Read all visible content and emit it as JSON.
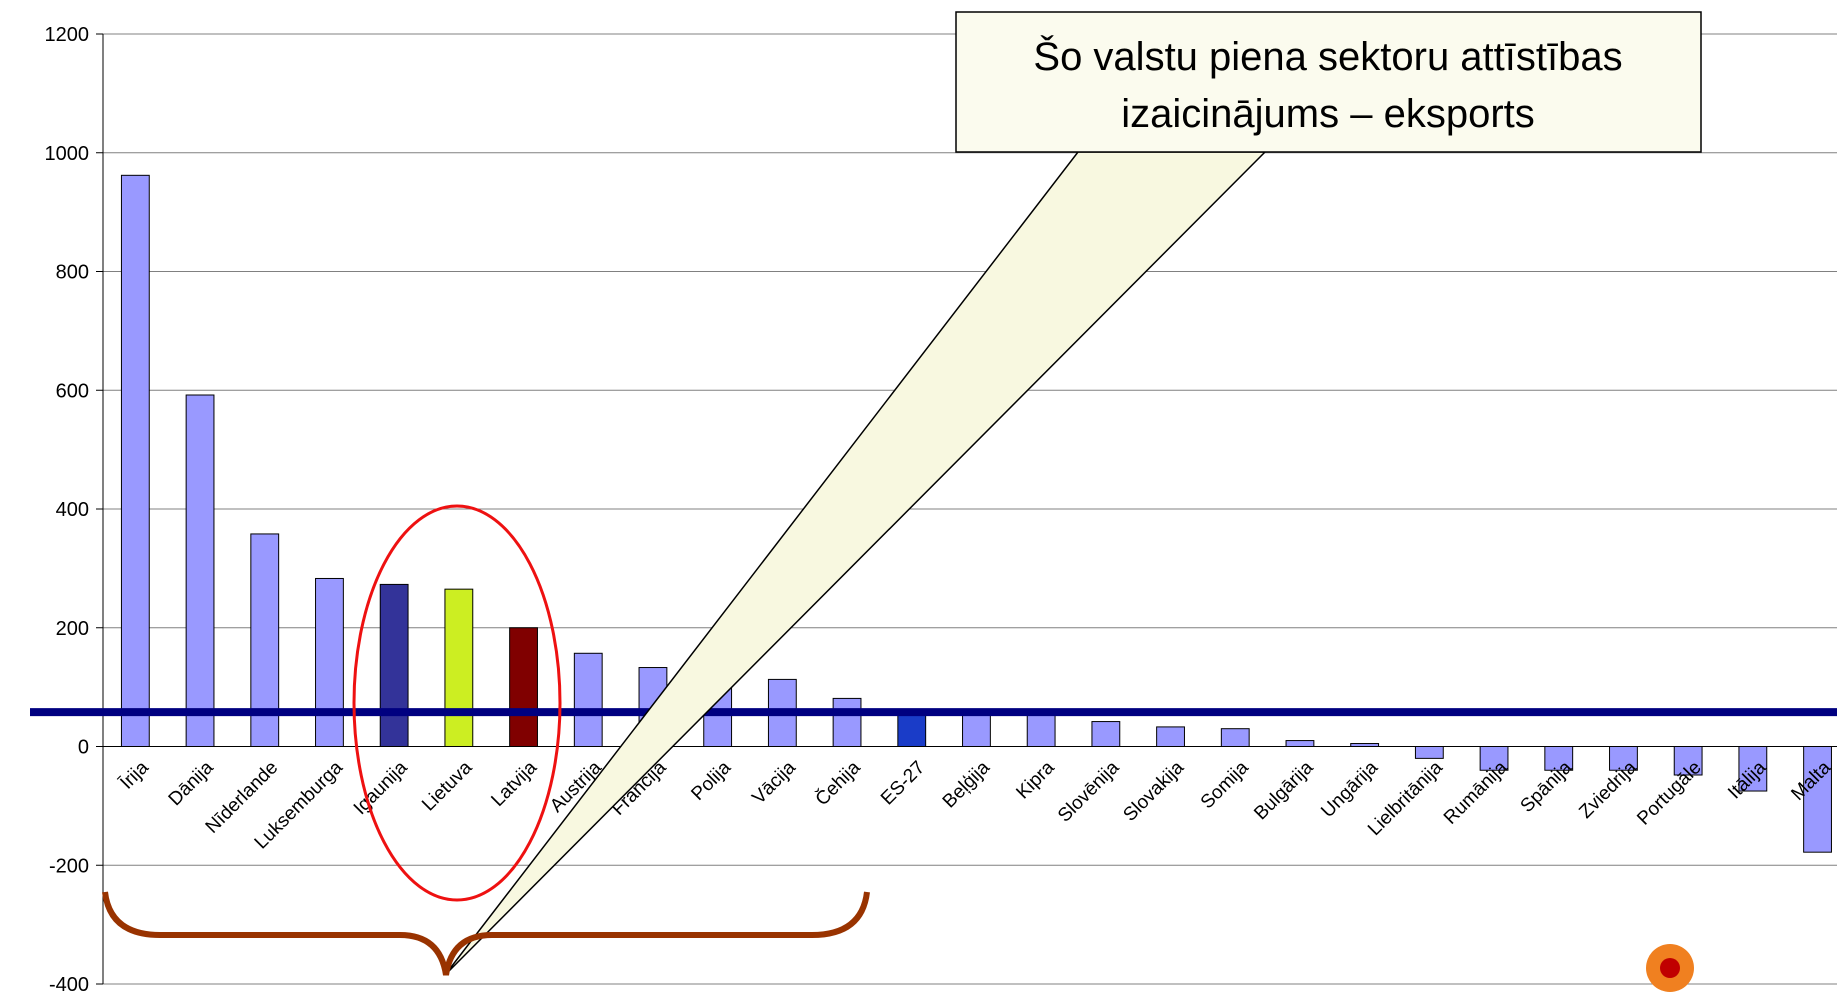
{
  "chart_data": {
    "type": "bar",
    "categories": [
      "Īrija",
      "Dānija",
      "Nīderlande",
      "Luksemburga",
      "Igaunija",
      "Lietuva",
      "Latvija",
      "Austrija",
      "Francija",
      "Polija",
      "Vācija",
      "Čehija",
      "ES-27",
      "Beļģija",
      "Kipra",
      "Slovēnija",
      "Slovakija",
      "Somija",
      "Bulgārija",
      "Ungārija",
      "Lielbritānija",
      "Rumānija",
      "Spānija",
      "Zviedrija",
      "Portugāle",
      "Itālija",
      "Malta"
    ],
    "values": [
      962,
      592,
      358,
      283,
      273,
      265,
      200,
      157,
      133,
      123,
      113,
      81,
      58,
      55,
      55,
      42,
      33,
      30,
      10,
      5,
      -20,
      -40,
      -40,
      -40,
      -48,
      -75,
      -178
    ],
    "colors": [
      "#9999ff",
      "#9999ff",
      "#9999ff",
      "#9999ff",
      "#333399",
      "#ccee22",
      "#800000",
      "#9999ff",
      "#9999ff",
      "#9999ff",
      "#9999ff",
      "#9999ff",
      "#1a3cc8",
      "#9999ff",
      "#9999ff",
      "#9999ff",
      "#9999ff",
      "#9999ff",
      "#9999ff",
      "#9999ff",
      "#9999ff",
      "#9999ff",
      "#9999ff",
      "#9999ff",
      "#9999ff",
      "#9999ff",
      "#9999ff"
    ],
    "ylim": [
      -400,
      1200
    ],
    "yticks": [
      -400,
      -200,
      0,
      200,
      400,
      600,
      800,
      1000,
      1200
    ],
    "grid": true,
    "reference_line": 58,
    "reference_color": "#000080",
    "annotation": [
      "Šo valstu piena sektoru attīstības",
      "izaicinājums – eksports"
    ]
  }
}
